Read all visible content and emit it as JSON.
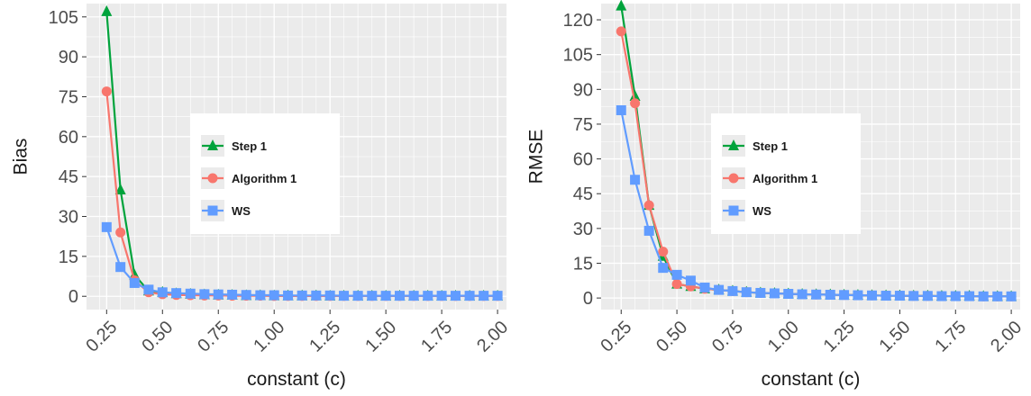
{
  "colors": {
    "panel_bg": "#EBEBEB",
    "grid": "#FFFFFF",
    "legend_bg": "#FFFFFF"
  },
  "chart_data": [
    {
      "type": "line",
      "xlabel": "constant (c)",
      "ylabel": "Bias",
      "xlim": [
        0.16,
        2.04
      ],
      "ylim": [
        -5,
        110
      ],
      "xticks": [
        0.25,
        0.5,
        0.75,
        1.0,
        1.25,
        1.5,
        1.75,
        2.0
      ],
      "xtick_labels": [
        "0.25",
        "0.50",
        "0.75",
        "1.00",
        "1.25",
        "1.50",
        "1.75",
        "2.00"
      ],
      "yticks": [
        0,
        15,
        30,
        45,
        60,
        75,
        90,
        105
      ],
      "ytick_labels": [
        "0",
        "15",
        "30",
        "45",
        "60",
        "75",
        "90",
        "105"
      ],
      "grid": true,
      "legend_position": "center",
      "x": [
        0.25,
        0.312,
        0.375,
        0.438,
        0.5,
        0.562,
        0.625,
        0.688,
        0.75,
        0.812,
        0.875,
        0.938,
        1.0,
        1.062,
        1.125,
        1.188,
        1.25,
        1.312,
        1.375,
        1.438,
        1.5,
        1.562,
        1.625,
        1.688,
        1.75,
        1.812,
        1.875,
        1.938,
        2.0
      ],
      "series": [
        {
          "name": "Step 1",
          "color": "#00A33C",
          "marker": "triangle",
          "values": [
            107,
            40,
            8,
            2,
            1.5,
            1,
            0.8,
            0.6,
            0.5,
            0.4,
            0.3,
            0.3,
            0.2,
            0.2,
            0.2,
            0.2,
            0.1,
            0.1,
            0.1,
            0.1,
            0.1,
            0.1,
            0.1,
            0.1,
            0.1,
            0.1,
            0.1,
            0.1,
            0.1
          ]
        },
        {
          "name": "Algorithm 1",
          "color": "#F8766D",
          "marker": "circle",
          "values": [
            77,
            24,
            6,
            1.5,
            0.8,
            0.5,
            0.4,
            0.3,
            0.3,
            0.2,
            0.2,
            0.2,
            0.1,
            0.1,
            0.1,
            0.1,
            0.1,
            0.1,
            0.1,
            0.1,
            0.1,
            0.1,
            0.1,
            0.1,
            0.1,
            0.1,
            0.1,
            0.1,
            0.1
          ]
        },
        {
          "name": "WS",
          "color": "#619CFF",
          "marker": "square",
          "values": [
            26,
            11,
            5,
            2.5,
            1.5,
            1.2,
            1,
            0.8,
            0.7,
            0.6,
            0.5,
            0.4,
            0.4,
            0.3,
            0.3,
            0.3,
            0.3,
            0.2,
            0.2,
            0.2,
            0.2,
            0.2,
            0.2,
            0.2,
            0.2,
            0.2,
            0.2,
            0.2,
            0.2
          ]
        }
      ]
    },
    {
      "type": "line",
      "xlabel": "constant (c)",
      "ylabel": "RMSE",
      "xlim": [
        0.16,
        2.04
      ],
      "ylim": [
        -5,
        127
      ],
      "xticks": [
        0.25,
        0.5,
        0.75,
        1.0,
        1.25,
        1.5,
        1.75,
        2.0
      ],
      "xtick_labels": [
        "0.25",
        "0.50",
        "0.75",
        "1.00",
        "1.25",
        "1.50",
        "1.75",
        "2.00"
      ],
      "yticks": [
        0,
        15,
        30,
        45,
        60,
        75,
        90,
        105,
        120
      ],
      "ytick_labels": [
        "0",
        "15",
        "30",
        "45",
        "60",
        "75",
        "90",
        "105",
        "120"
      ],
      "grid": true,
      "legend_position": "center",
      "x": [
        0.25,
        0.312,
        0.375,
        0.438,
        0.5,
        0.562,
        0.625,
        0.688,
        0.75,
        0.812,
        0.875,
        0.938,
        1.0,
        1.062,
        1.125,
        1.188,
        1.25,
        1.312,
        1.375,
        1.438,
        1.5,
        1.562,
        1.625,
        1.688,
        1.75,
        1.812,
        1.875,
        1.938,
        2.0
      ],
      "series": [
        {
          "name": "Step 1",
          "color": "#00A33C",
          "marker": "triangle",
          "values": [
            126,
            87,
            40,
            18,
            6,
            5,
            4,
            3.5,
            3,
            2.5,
            2.2,
            2,
            1.8,
            1.6,
            1.5,
            1.4,
            1.3,
            1.2,
            1.1,
            1,
            1,
            0.9,
            0.9,
            0.8,
            0.8,
            0.8,
            0.7,
            0.7,
            0.7
          ]
        },
        {
          "name": "Algorithm 1",
          "color": "#F8766D",
          "marker": "circle",
          "values": [
            115,
            84,
            40,
            20,
            6,
            5,
            4,
            3.5,
            3,
            2.5,
            2.2,
            2,
            1.8,
            1.6,
            1.5,
            1.4,
            1.3,
            1.2,
            1.1,
            1,
            1,
            0.9,
            0.9,
            0.8,
            0.8,
            0.8,
            0.7,
            0.7,
            0.7
          ]
        },
        {
          "name": "WS",
          "color": "#619CFF",
          "marker": "square",
          "values": [
            81,
            51,
            29,
            13,
            10,
            7.5,
            4.5,
            3.5,
            3,
            2.5,
            2.2,
            2,
            1.8,
            1.6,
            1.5,
            1.4,
            1.3,
            1.2,
            1.1,
            1,
            1,
            0.9,
            0.9,
            0.8,
            0.8,
            0.8,
            0.7,
            0.7,
            0.7
          ]
        }
      ]
    }
  ]
}
